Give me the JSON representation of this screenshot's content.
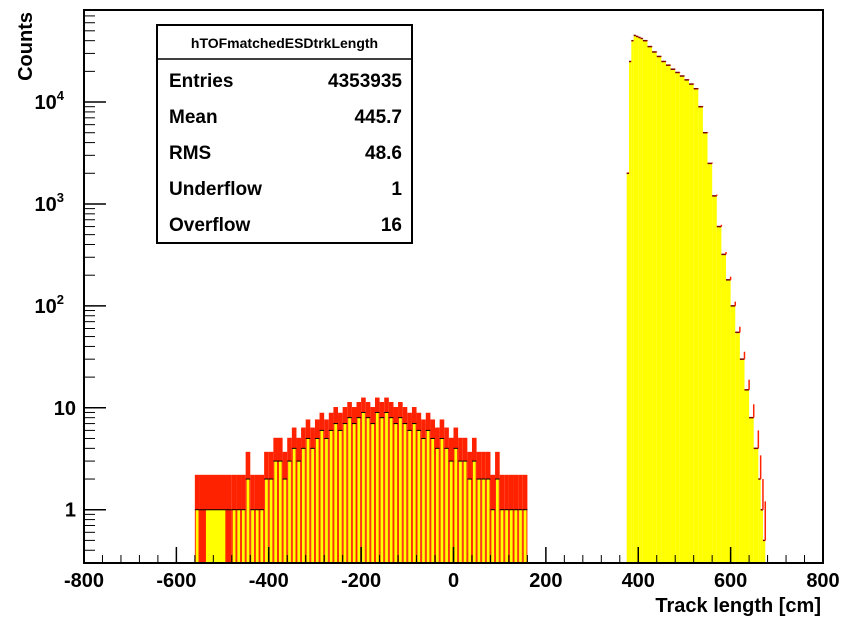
{
  "chart_data": {
    "type": "bar",
    "title": "",
    "xlabel": "Track length [cm]",
    "ylabel": "Counts",
    "xlim": [
      -800,
      800
    ],
    "ylim": [
      0.3,
      80000
    ],
    "yscale": "log",
    "grid": false,
    "fill_color": "#ffff00",
    "error_color": "#ff2200",
    "outline_color": "#7a0000",
    "x_ticks": [
      {
        "value": -800,
        "label": "-800"
      },
      {
        "value": -600,
        "label": "-600"
      },
      {
        "value": -400,
        "label": "-400"
      },
      {
        "value": -200,
        "label": "-200"
      },
      {
        "value": 0,
        "label": "0"
      },
      {
        "value": 200,
        "label": "200"
      },
      {
        "value": 400,
        "label": "400"
      },
      {
        "value": 600,
        "label": "600"
      },
      {
        "value": 800,
        "label": "800"
      }
    ],
    "y_ticks": [
      {
        "value": 1,
        "base": "1",
        "exp": ""
      },
      {
        "value": 10,
        "base": "10",
        "exp": ""
      },
      {
        "value": 100,
        "base": "10",
        "exp": "2"
      },
      {
        "value": 1000,
        "base": "10",
        "exp": "3"
      },
      {
        "value": 10000,
        "base": "10",
        "exp": "4"
      }
    ],
    "series": [
      {
        "x": [
          -560,
          -550,
          -480,
          -470,
          -460,
          -450,
          -440,
          -430,
          -420,
          -410,
          -400,
          -390,
          -380,
          -370,
          -360,
          -350,
          -340,
          -330,
          -320,
          -310,
          -300,
          -290,
          -280,
          -270,
          -260,
          -250,
          -240,
          -230,
          -220,
          -210,
          -200,
          -190,
          -180,
          -170,
          -160,
          -150,
          -140,
          -130,
          -120,
          -110,
          -100,
          -90,
          -80,
          -70,
          -60,
          -50,
          -40,
          -30,
          -20,
          -10,
          0,
          10,
          20,
          30,
          40,
          50,
          60,
          70,
          80,
          90,
          100,
          110,
          120,
          130,
          140,
          150
        ],
        "values": [
          1,
          1,
          1,
          1,
          1,
          2,
          1,
          1,
          1,
          2,
          2,
          3,
          3,
          2,
          3,
          4,
          3,
          4,
          5,
          4,
          5,
          6,
          5,
          6,
          7,
          6,
          7,
          8,
          7,
          8,
          9,
          8,
          7,
          9,
          8,
          9,
          8,
          7,
          8,
          7,
          6,
          7,
          6,
          5,
          6,
          5,
          4,
          5,
          4,
          3,
          4,
          3,
          3,
          2,
          3,
          2,
          2,
          2,
          1,
          2,
          1,
          1,
          1,
          1,
          1,
          1
        ]
      },
      {
        "x": [
          375,
          380,
          385,
          390,
          395,
          400,
          405,
          410,
          420,
          430,
          440,
          450,
          460,
          470,
          480,
          490,
          500,
          510,
          520,
          530,
          540,
          550,
          560,
          570,
          580,
          590,
          600,
          610,
          620,
          630,
          640,
          650,
          660,
          665,
          670
        ],
        "values": [
          2000,
          25000,
          40000,
          45000,
          44000,
          43000,
          42000,
          40000,
          35000,
          31000,
          28000,
          25000,
          23000,
          21000,
          19500,
          18000,
          16500,
          15000,
          13500,
          9000,
          5000,
          2500,
          1200,
          600,
          320,
          180,
          100,
          55,
          30,
          15,
          8,
          4,
          2,
          1,
          0.5
        ]
      }
    ]
  },
  "stats_box": {
    "title": "hTOFmatchedESDtrkLength",
    "rows": [
      {
        "label": "Entries",
        "value": "4353935"
      },
      {
        "label": "Mean",
        "value": "445.7"
      },
      {
        "label": "RMS",
        "value": "48.6"
      },
      {
        "label": "Underflow",
        "value": "1"
      },
      {
        "label": "Overflow",
        "value": "16"
      }
    ]
  }
}
